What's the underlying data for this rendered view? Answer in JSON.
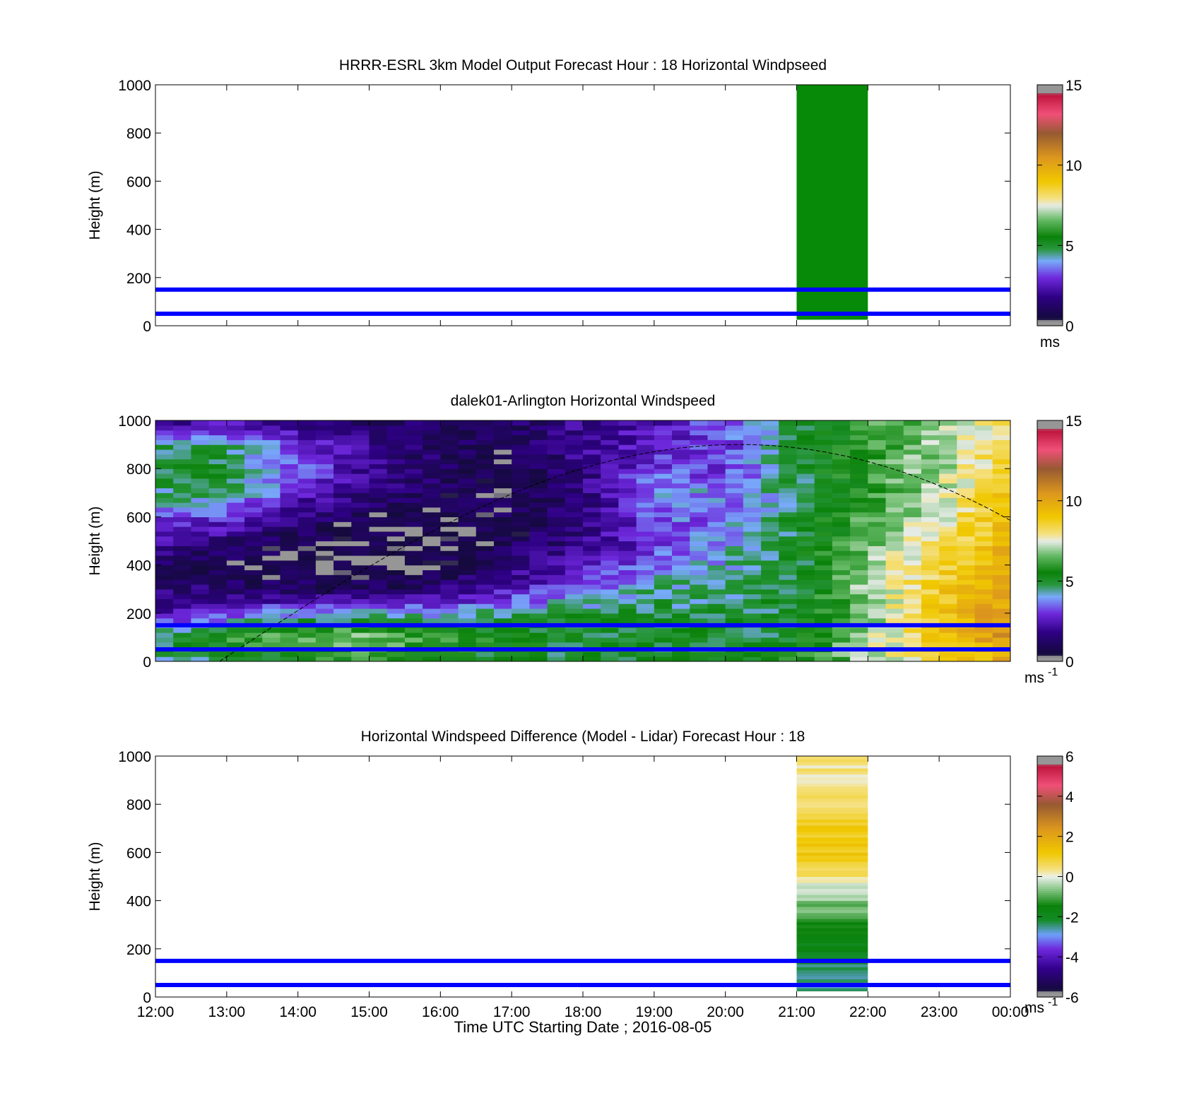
{
  "figure": {
    "xlabel": "Time UTC  Starting Date ; 2016-08-05",
    "xticks": [
      "12:00",
      "13:00",
      "14:00",
      "15:00",
      "16:00",
      "17:00",
      "18:00",
      "19:00",
      "20:00",
      "21:00",
      "22:00",
      "23:00",
      "00:00"
    ]
  },
  "chart_data": [
    {
      "type": "heatmap",
      "title": "HRRR-ESRL 3km Model Output   Forecast Hour : 18 Horizontal Windpseed",
      "ylabel": "Height (m)",
      "yticks": [
        "0",
        "200",
        "400",
        "600",
        "800",
        "1000"
      ],
      "ylim": [
        0,
        1000
      ],
      "x_range_hours": [
        12,
        24
      ],
      "colorbar": {
        "unit": "ms",
        "ticks": [
          "0",
          "5",
          "10",
          "15"
        ],
        "range": [
          0,
          15
        ],
        "scheme": "speed"
      },
      "reference_lines_m": [
        50,
        150
      ],
      "reference_line_color": "#0000ff",
      "filled_block": {
        "x_start": "21:00",
        "x_end": "22:00",
        "y_bottom": 25,
        "y_top": 1000,
        "value": 5.0,
        "color": "#078a07"
      },
      "values_note": "only 21:00-22:00 column has data; uniform ~5 m/s"
    },
    {
      "type": "heatmap",
      "title": "dalek01-Arlington  Horizontal Windspeed",
      "ylabel": "Height (m)",
      "yticks": [
        "0",
        "200",
        "400",
        "600",
        "800",
        "1000"
      ],
      "ylim": [
        0,
        1000
      ],
      "x_range_hours": [
        12,
        24
      ],
      "colorbar": {
        "unit": "ms",
        "unit_exponent": "-1",
        "ticks": [
          "0",
          "5",
          "10",
          "15"
        ],
        "range": [
          0,
          15
        ],
        "scheme": "speed"
      },
      "reference_lines_m": [
        50,
        150
      ],
      "reference_line_color": "#0000ff",
      "curve": {
        "style": "dashed",
        "color": "#000000",
        "peak_time": 20.2,
        "peak_height": 900,
        "start_time": 12.9,
        "start_height": 0,
        "end_time": 24.0,
        "end_height": 585
      },
      "height_levels_m": [
        25,
        100,
        200,
        300,
        400,
        500,
        600,
        700,
        800,
        900,
        975
      ],
      "time_profiles": [
        {
          "t": 12.0,
          "v": [
            4.5,
            5.2,
            2.0,
            1.5,
            1.2,
            2.2,
            3.0,
            4.5,
            5.0,
            4.5,
            2.0
          ]
        },
        {
          "t": 13.0,
          "v": [
            5.0,
            6.0,
            3.0,
            1.5,
            0.8,
            1.5,
            3.2,
            4.8,
            5.2,
            4.6,
            2.5
          ]
        },
        {
          "t": 14.0,
          "v": [
            5.5,
            6.5,
            4.0,
            1.2,
            0.5,
            0.8,
            1.5,
            2.8,
            3.5,
            3.0,
            2.0
          ]
        },
        {
          "t": 15.0,
          "v": [
            6.0,
            6.8,
            4.5,
            1.0,
            0.4,
            0.6,
            0.9,
            1.5,
            2.0,
            1.8,
            1.3
          ]
        },
        {
          "t": 16.0,
          "v": [
            5.5,
            6.0,
            4.0,
            1.5,
            0.5,
            0.5,
            0.8,
            1.2,
            1.3,
            1.1,
            1.2
          ]
        },
        {
          "t": 17.0,
          "v": [
            5.0,
            5.5,
            4.5,
            2.5,
            1.5,
            1.0,
            1.0,
            0.8,
            0.8,
            0.9,
            1.2
          ]
        },
        {
          "t": 18.0,
          "v": [
            5.0,
            5.2,
            4.8,
            3.5,
            2.5,
            1.8,
            1.5,
            1.5,
            1.8,
            2.0,
            2.0
          ]
        },
        {
          "t": 19.0,
          "v": [
            5.2,
            5.0,
            4.8,
            4.5,
            3.5,
            3.0,
            3.5,
            4.0,
            3.2,
            2.8,
            2.5
          ]
        },
        {
          "t": 20.0,
          "v": [
            5.2,
            5.0,
            4.8,
            4.5,
            4.2,
            4.0,
            3.5,
            3.8,
            3.0,
            3.0,
            3.5
          ]
        },
        {
          "t": 21.0,
          "v": [
            5.5,
            5.0,
            5.0,
            5.0,
            4.8,
            5.0,
            5.0,
            4.5,
            5.0,
            5.0,
            5.0
          ]
        },
        {
          "t": 22.0,
          "v": [
            7.0,
            7.0,
            6.8,
            7.0,
            7.0,
            6.5,
            6.2,
            6.0,
            6.2,
            6.0,
            6.0
          ]
        },
        {
          "t": 23.0,
          "v": [
            8.5,
            9.0,
            9.0,
            8.8,
            8.5,
            8.0,
            7.5,
            7.2,
            7.0,
            7.0,
            6.8
          ]
        },
        {
          "t": 24.0,
          "v": [
            10.0,
            10.5,
            10.5,
            10.0,
            9.8,
            9.5,
            9.5,
            9.2,
            8.8,
            8.5,
            8.2
          ]
        }
      ]
    },
    {
      "type": "heatmap",
      "title": "Horizontal Windspeed Difference (Model - Lidar) Forecast Hour : 18",
      "ylabel": "Height (m)",
      "yticks": [
        "0",
        "200",
        "400",
        "600",
        "800",
        "1000"
      ],
      "ylim": [
        0,
        1000
      ],
      "x_range_hours": [
        12,
        24
      ],
      "colorbar": {
        "unit": "ms",
        "unit_exponent": "-1",
        "ticks": [
          "-6",
          "-4",
          "-2",
          "0",
          "2",
          "4",
          "6"
        ],
        "range": [
          -6,
          6
        ],
        "scheme": "diff"
      },
      "reference_lines_m": [
        50,
        150
      ],
      "reference_line_color": "#0000ff",
      "filled_block": {
        "x_start": "21:00",
        "x_end": "22:00",
        "y_bottom": 25,
        "y_top": 1000
      },
      "block_profile": {
        "heights_m": [
          25,
          100,
          200,
          300,
          400,
          450,
          500,
          600,
          700,
          800,
          900,
          1000
        ],
        "values": [
          -2.6,
          -2.4,
          -1.8,
          -1.2,
          -0.6,
          -0.2,
          0.5,
          1.2,
          1.0,
          0.5,
          0.3,
          0.4
        ]
      }
    }
  ]
}
